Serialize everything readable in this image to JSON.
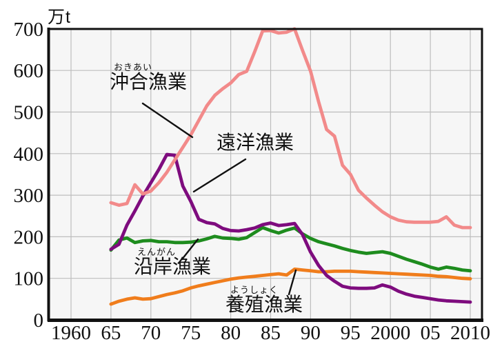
{
  "unit_label": "万t",
  "labels": {
    "okiai": {
      "furigana": "おきあい",
      "text": "沖合漁業"
    },
    "enyo": {
      "furigana": "",
      "text": "遠洋漁業"
    },
    "engan": {
      "furigana": "えんがん",
      "text": "沿岸漁業"
    },
    "yoshoku": {
      "furigana": "ようしょく",
      "text": "養殖漁業"
    }
  },
  "colors": {
    "offshore": "#F28A8A",
    "distant": "#7E0C7E",
    "coastal": "#1E8C1E",
    "aquaculture": "#F07D1C",
    "grid": "#BDBDBD",
    "plot_bg": "#F6F6F6",
    "axis": "#111111",
    "annotation_line": "#111111"
  },
  "chart_data": {
    "type": "line",
    "title": "",
    "ylabel_unit": "万t",
    "ylim": [
      0,
      700
    ],
    "grid": true,
    "legend_position": "inline-annotations",
    "x_tick_years": [
      1960,
      1965,
      1970,
      1975,
      1980,
      1985,
      1990,
      1995,
      2000,
      2005,
      2010
    ],
    "x_tick_labels": [
      "1960",
      "65",
      "70",
      "75",
      "80",
      "85",
      "90",
      "95",
      "2000",
      "05",
      "2010"
    ],
    "y_tick_values": [
      0,
      100,
      200,
      300,
      400,
      500,
      600,
      700
    ],
    "y_tick_labels": [
      "0",
      "100",
      "200",
      "300",
      "400",
      "500",
      "600",
      "700"
    ],
    "years_range": [
      1965,
      2010
    ],
    "series": [
      {
        "key": "coastal",
        "name": "沿岸漁業",
        "furigana": "えんがん",
        "color": "#1E8C1E",
        "values": [
          168,
          192,
          197,
          186,
          190,
          191,
          188,
          188,
          186,
          186,
          187,
          190,
          195,
          201,
          197,
          196,
          194,
          198,
          210,
          222,
          215,
          209,
          216,
          221,
          207,
          196,
          188,
          183,
          178,
          172,
          167,
          163,
          160,
          162,
          164,
          160,
          153,
          146,
          140,
          134,
          127,
          122,
          127,
          124,
          120,
          118
        ]
      },
      {
        "key": "aquaculture",
        "name": "養殖漁業",
        "furigana": "ようしょく",
        "color": "#F07D1C",
        "values": [
          38,
          45,
          50,
          53,
          50,
          51,
          56,
          61,
          65,
          70,
          77,
          82,
          86,
          90,
          94,
          98,
          101,
          103,
          105,
          107,
          109,
          111,
          108,
          122,
          120,
          118,
          116,
          116,
          117,
          117,
          117,
          116,
          115,
          114,
          113,
          112,
          111,
          110,
          109,
          108,
          107,
          105,
          104,
          102,
          100,
          99
        ]
      },
      {
        "key": "distant",
        "name": "遠洋漁業",
        "furigana": "",
        "color": "#7E0C7E",
        "values": [
          170,
          182,
          228,
          262,
          298,
          330,
          362,
          398,
          396,
          322,
          285,
          242,
          234,
          231,
          220,
          215,
          214,
          217,
          221,
          229,
          233,
          227,
          229,
          232,
          205,
          163,
          131,
          107,
          93,
          81,
          77,
          76,
          76,
          77,
          84,
          79,
          69,
          62,
          57,
          54,
          51,
          48,
          46,
          45,
          44,
          43
        ]
      },
      {
        "key": "offshore",
        "name": "沖合漁業",
        "furigana": "おきあい",
        "color": "#F28A8A",
        "values": [
          282,
          276,
          280,
          325,
          303,
          310,
          330,
          355,
          385,
          415,
          445,
          480,
          515,
          540,
          556,
          570,
          590,
          598,
          645,
          695,
          696,
          690,
          692,
          700,
          648,
          598,
          525,
          458,
          442,
          372,
          350,
          312,
          293,
          276,
          260,
          248,
          240,
          236,
          235,
          235,
          235,
          237,
          248,
          228,
          222,
          222
        ]
      }
    ]
  }
}
